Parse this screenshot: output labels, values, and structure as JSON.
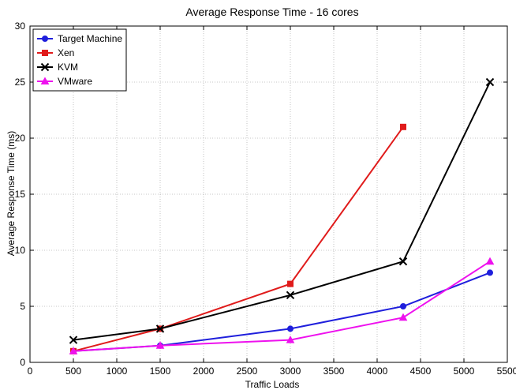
{
  "chart_data": {
    "type": "line",
    "title": "Average Response Time - 16 cores",
    "xlabel": "Traffic Loads",
    "ylabel": "Average Response Time (ms)",
    "xlim": [
      0,
      5500
    ],
    "ylim": [
      0,
      30
    ],
    "xticks": [
      0,
      500,
      1000,
      1500,
      2000,
      2500,
      3000,
      3500,
      4000,
      4500,
      5000,
      5500
    ],
    "yticks": [
      0,
      5,
      10,
      15,
      20,
      25,
      30
    ],
    "grid": true,
    "legend_position": "top-left",
    "series": [
      {
        "name": "Target Machine",
        "color": "#1f1fdc",
        "marker": "circle",
        "x": [
          500,
          1500,
          3000,
          4300,
          5300
        ],
        "y": [
          1,
          1.5,
          3,
          5,
          8
        ]
      },
      {
        "name": "Xen",
        "color": "#e01b1b",
        "marker": "square",
        "x": [
          500,
          1500,
          3000,
          4300
        ],
        "y": [
          1,
          3,
          7,
          21
        ]
      },
      {
        "name": "KVM",
        "color": "#000000",
        "marker": "x",
        "x": [
          500,
          1500,
          3000,
          4300,
          5300
        ],
        "y": [
          2,
          3,
          6,
          9,
          25
        ]
      },
      {
        "name": "VMware",
        "color": "#ee11ee",
        "marker": "triangle",
        "x": [
          500,
          1500,
          3000,
          4300,
          5300
        ],
        "y": [
          1,
          1.5,
          2,
          4,
          9
        ]
      }
    ]
  }
}
